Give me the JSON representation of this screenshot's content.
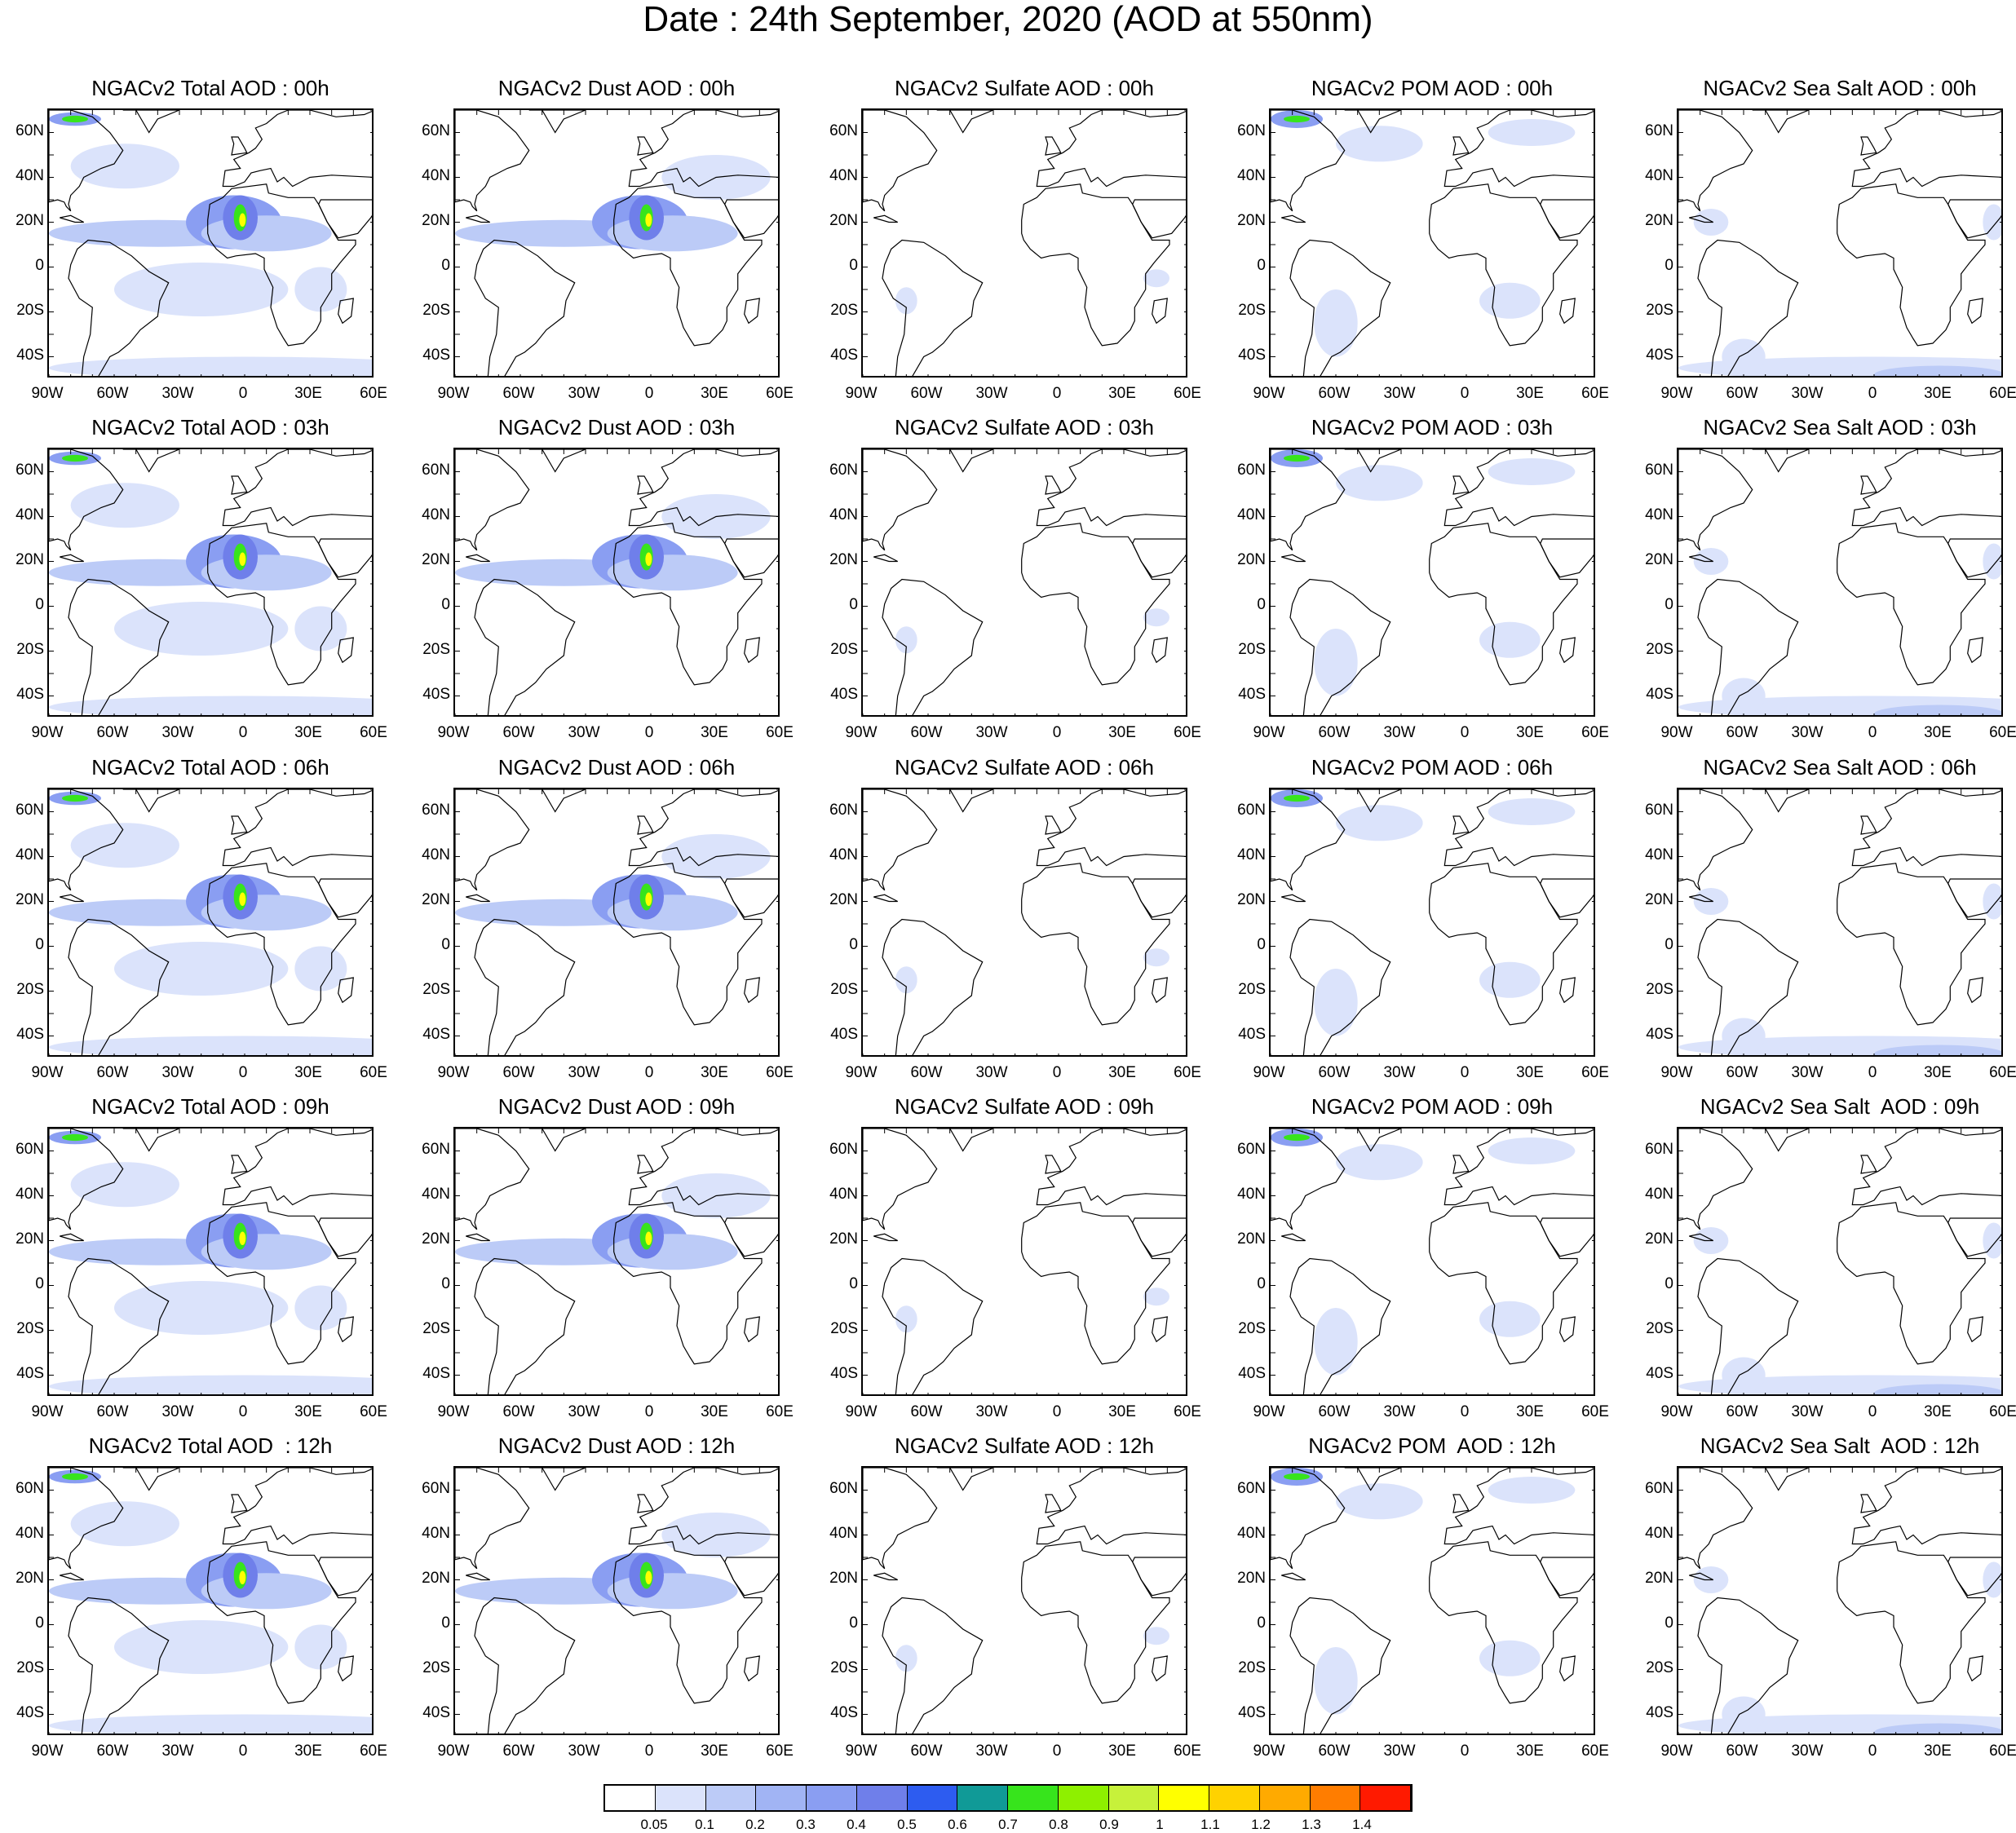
{
  "title": "Date : 24th September, 2020 (AOD at 550nm)",
  "lat_labels": [
    "60N",
    "40N",
    "20N",
    "0",
    "20S",
    "40S"
  ],
  "lat_values": [
    60,
    40,
    20,
    0,
    -20,
    -40
  ],
  "lon_labels": [
    "90W",
    "60W",
    "30W",
    "0",
    "30E",
    "60E"
  ],
  "lon_values": [
    -90,
    -60,
    -30,
    0,
    30,
    60
  ],
  "map_extent": {
    "lon": [
      -90,
      60
    ],
    "lat": [
      -50,
      70
    ]
  },
  "panel_titles": [
    [
      "NGACv2 Total AOD : 00h",
      "NGACv2 Dust AOD : 00h",
      "NGACv2 Sulfate AOD : 00h",
      "NGACv2 POM AOD : 00h",
      "NGACv2 Sea Salt AOD : 00h"
    ],
    [
      "NGACv2 Total AOD : 03h",
      "NGACv2 Dust AOD : 03h",
      "NGACv2 Sulfate AOD : 03h",
      "NGACv2 POM AOD : 03h",
      "NGACv2 Sea Salt AOD : 03h"
    ],
    [
      "NGACv2 Total AOD : 06h",
      "NGACv2 Dust AOD : 06h",
      "NGACv2 Sulfate AOD : 06h",
      "NGACv2 POM AOD : 06h",
      "NGACv2 Sea Salt AOD : 06h"
    ],
    [
      "NGACv2 Total AOD : 09h",
      "NGACv2 Dust AOD : 09h",
      "NGACv2 Sulfate AOD : 09h",
      "NGACv2 POM AOD : 09h",
      "NGACv2 Sea Salt  AOD : 09h"
    ],
    [
      "NGACv2 Total AOD  : 12h",
      "NGACv2 Dust AOD : 12h",
      "NGACv2 Sulfate AOD : 12h",
      "NGACv2 POM  AOD : 12h",
      "NGACv2 Sea Salt  AOD : 12h"
    ]
  ],
  "colorbar": {
    "labels": [
      "0.05",
      "0.1",
      "0.2",
      "0.3",
      "0.4",
      "0.5",
      "0.6",
      "0.7",
      "0.8",
      "0.9",
      "1",
      "1.1",
      "1.2",
      "1.3",
      "1.4"
    ],
    "colors": [
      "#ffffff",
      "#dbe3fb",
      "#bccbf7",
      "#a1b4f4",
      "#8a9ef2",
      "#6f7fea",
      "#2d5cf0",
      "#109a97",
      "#37e41c",
      "#8ef000",
      "#c7f13a",
      "#ffff00",
      "#ffd200",
      "#ffaa00",
      "#ff7d00",
      "#ff1a00"
    ]
  },
  "plume_colors": {
    "light": "#dbe3fb",
    "medium": "#bccbf7",
    "strong": "#8a9ef2",
    "deep": "#6f7fea",
    "green": "#37e41c",
    "yellow": "#ffff00",
    "red": "#ff1a00"
  }
}
